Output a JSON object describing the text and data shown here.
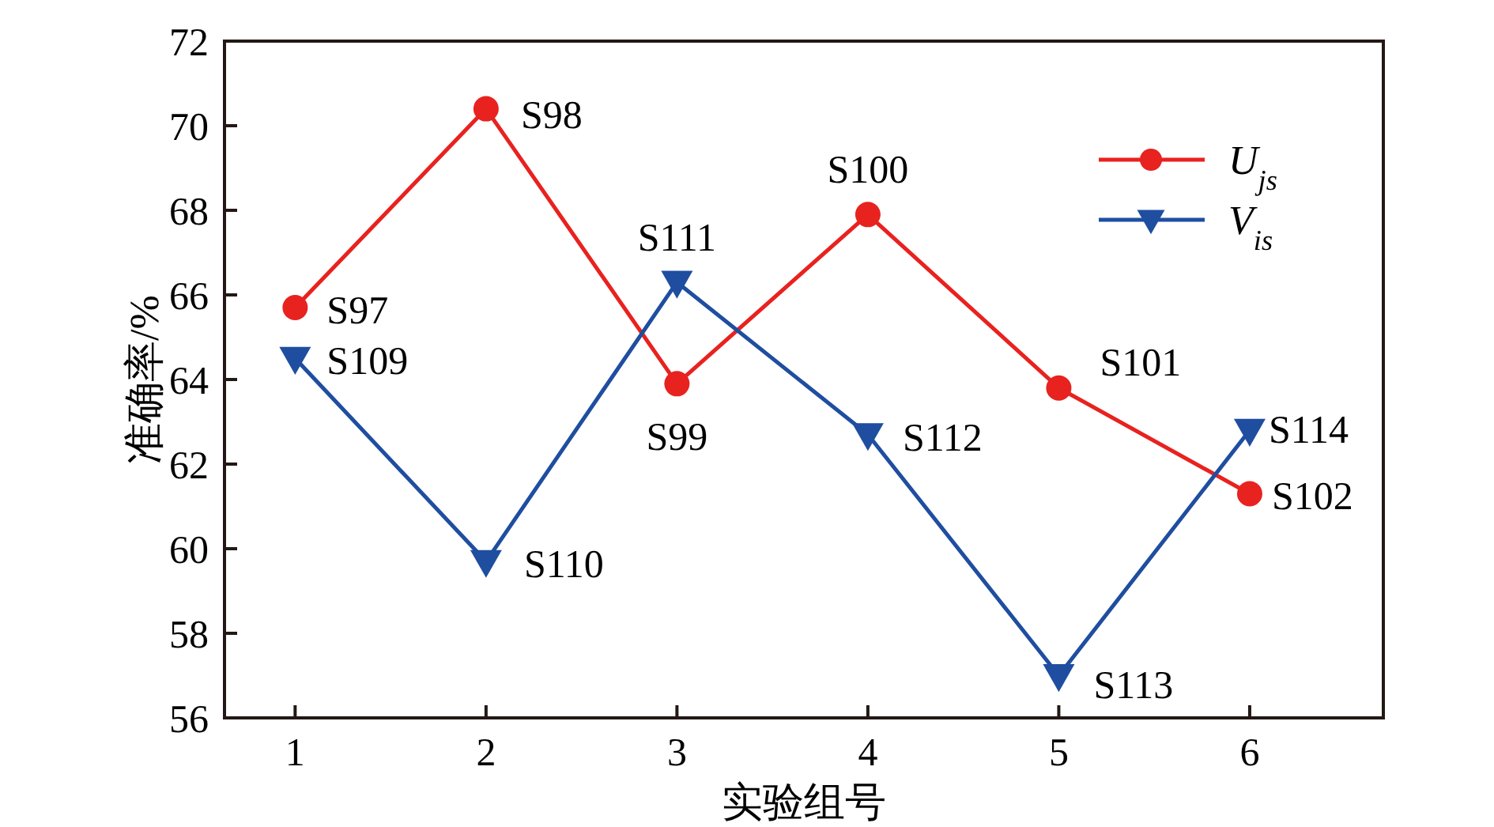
{
  "chart_data": {
    "type": "line",
    "xlabel": "实验组号",
    "ylabel": "准确率/%",
    "x": [
      1,
      2,
      3,
      4,
      5,
      6
    ],
    "xlim": [
      0.63,
      6.7
    ],
    "xticks": [
      1,
      2,
      3,
      4,
      5,
      6
    ],
    "ylim": [
      56,
      72
    ],
    "yticks": [
      56,
      58,
      60,
      62,
      64,
      66,
      68,
      70,
      72
    ],
    "grid": false,
    "legend": "top right",
    "series": [
      {
        "name": "U$_{js}$",
        "color": "#e8221f",
        "marker": "circle",
        "values": [
          65.7,
          70.4,
          63.9,
          67.9,
          63.8,
          61.3
        ]
      },
      {
        "name": "V$_{is}$",
        "color": "#1f4ea0",
        "marker": "triangle",
        "values": [
          64.5,
          59.7,
          66.3,
          62.7,
          57.0,
          62.8
        ]
      }
    ],
    "annotations": [
      {
        "text": "S97",
        "x": 1,
        "y": 65.7
      },
      {
        "text": "S98",
        "x": 2,
        "y": 70.4
      },
      {
        "text": "S99",
        "x": 3,
        "y": 63.9
      },
      {
        "text": "S100",
        "x": 4,
        "y": 67.9
      },
      {
        "text": "S101",
        "x": 5,
        "y": 63.8
      },
      {
        "text": "S102",
        "x": 6,
        "y": 61.3
      },
      {
        "text": "S109",
        "x": 1,
        "y": 64.5
      },
      {
        "text": "S110",
        "x": 2,
        "y": 59.7
      },
      {
        "text": "S111",
        "x": 3,
        "y": 66.3
      },
      {
        "text": "S112",
        "x": 4,
        "y": 62.7
      },
      {
        "text": "S113",
        "x": 5,
        "y": 57.0
      },
      {
        "text": "S114",
        "x": 6,
        "y": 62.8
      }
    ]
  }
}
